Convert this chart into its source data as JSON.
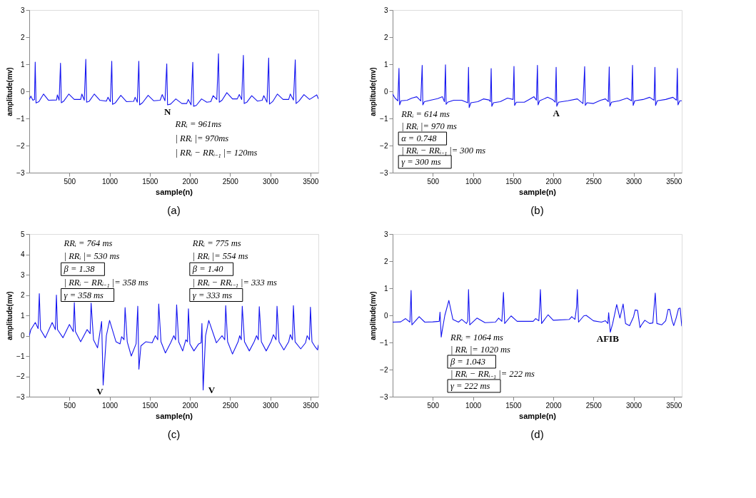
{
  "chart_data": [
    {
      "type": "line",
      "title": "(a)",
      "xlabel": "sample(n)",
      "ylabel": "amplitude(mv)",
      "xlim": [
        0,
        3600
      ],
      "xticks": [
        500,
        1000,
        1500,
        2000,
        2500,
        3000,
        3500
      ],
      "ylim": [
        -3,
        3
      ],
      "yticks": [
        -3,
        -2,
        -1,
        0,
        1,
        2,
        3
      ],
      "grid": false,
      "x": [
        0,
        20,
        45,
        65,
        74,
        84,
        120,
        178,
        240,
        340,
        350,
        372,
        389,
        399,
        430,
        493,
        560,
        640,
        655,
        685,
        704,
        714,
        745,
        810,
        880,
        960,
        980,
        1010,
        1027,
        1037,
        1070,
        1140,
        1210,
        1300,
        1318,
        1345,
        1364,
        1374,
        1410,
        1480,
        1550,
        1630,
        1655,
        1690,
        1712,
        1722,
        1760,
        1825,
        1900,
        1960,
        1980,
        2015,
        2036,
        2046,
        2080,
        2145,
        2210,
        2260,
        2290,
        2335,
        2356,
        2366,
        2400,
        2460,
        2530,
        2590,
        2615,
        2645,
        2666,
        2676,
        2710,
        2770,
        2840,
        2900,
        2920,
        2960,
        2981,
        2991,
        3030,
        3090,
        3160,
        3230,
        3250,
        3290,
        3312,
        3322,
        3360,
        3420,
        3490,
        3580,
        3600
      ],
      "series": [
        {
          "color": "#1414f0",
          "values": [
            -0.3,
            -0.18,
            -0.33,
            -0.3,
            1.08,
            -0.43,
            -0.38,
            -0.1,
            -0.33,
            -0.32,
            -0.13,
            -0.33,
            1.04,
            -0.42,
            -0.36,
            -0.1,
            -0.3,
            -0.3,
            -0.1,
            -0.33,
            1.18,
            -0.4,
            -0.37,
            -0.1,
            -0.33,
            -0.36,
            -0.22,
            -0.38,
            1.11,
            -0.48,
            -0.43,
            -0.15,
            -0.38,
            -0.37,
            -0.22,
            -0.4,
            1.11,
            -0.5,
            -0.42,
            -0.15,
            -0.35,
            -0.33,
            -0.12,
            -0.35,
            1.01,
            -0.5,
            -0.47,
            -0.28,
            -0.45,
            -0.45,
            -0.3,
            -0.5,
            1.07,
            -0.55,
            -0.52,
            -0.28,
            -0.4,
            -0.38,
            -0.16,
            -0.3,
            1.39,
            -0.4,
            -0.33,
            -0.05,
            -0.28,
            -0.28,
            -0.12,
            -0.3,
            1.33,
            -0.45,
            -0.4,
            -0.16,
            -0.36,
            -0.33,
            -0.16,
            -0.4,
            1.23,
            -0.47,
            -0.38,
            -0.1,
            -0.3,
            -0.3,
            -0.1,
            -0.32,
            1.16,
            -0.45,
            -0.35,
            -0.12,
            -0.3,
            -0.13,
            -0.28
          ]
        }
      ],
      "annotations": [
        "N",
        "RRᵢ = 961ms",
        "| RRᵢ |= 970ms",
        "| RRᵢ − RRᵢ₋₁ |= 120ms"
      ]
    },
    {
      "type": "line",
      "title": "(b)",
      "xlabel": "sample(n)",
      "ylabel": "amplitude(mv)",
      "xlim": [
        0,
        3600
      ],
      "xticks": [
        500,
        1000,
        1500,
        2000,
        2500,
        3000,
        3500
      ],
      "ylim": [
        -3,
        3
      ],
      "yticks": [
        -3,
        -2,
        -1,
        0,
        1,
        2,
        3
      ],
      "grid": false,
      "x": [
        0,
        30,
        65,
        79,
        87,
        105,
        180,
        240,
        300,
        350,
        368,
        376,
        395,
        470,
        560,
        620,
        645,
        658,
        666,
        685,
        760,
        860,
        935,
        945,
        953,
        975,
        1060,
        1130,
        1200,
        1217,
        1227,
        1235,
        1255,
        1340,
        1430,
        1500,
        1511,
        1519,
        1540,
        1640,
        1700,
        1760,
        1790,
        1803,
        1811,
        1830,
        1930,
        1990,
        2025,
        2036,
        2044,
        2065,
        2180,
        2300,
        2370,
        2391,
        2399,
        2420,
        2500,
        2590,
        2650,
        2685,
        2697,
        2705,
        2725,
        2820,
        2920,
        2975,
        2987,
        2995,
        3015,
        3120,
        3200,
        3255,
        3266,
        3274,
        3295,
        3400,
        3490,
        3535,
        3545,
        3553,
        3575,
        3600
      ],
      "series": [
        {
          "color": "#1414f0",
          "values": [
            -0.1,
            -0.25,
            -0.35,
            0.85,
            -0.5,
            -0.35,
            -0.33,
            -0.25,
            -0.2,
            -0.35,
            0.96,
            -0.5,
            -0.38,
            -0.33,
            -0.27,
            -0.2,
            -0.38,
            0.98,
            -0.48,
            -0.4,
            -0.33,
            -0.33,
            -0.42,
            0.89,
            -0.6,
            -0.42,
            -0.38,
            -0.28,
            -0.32,
            -0.38,
            0.84,
            -0.55,
            -0.42,
            -0.38,
            -0.25,
            -0.3,
            0.92,
            -0.52,
            -0.4,
            -0.4,
            -0.3,
            -0.2,
            -0.33,
            0.96,
            -0.5,
            -0.35,
            -0.22,
            -0.3,
            -0.4,
            0.89,
            -0.55,
            -0.4,
            -0.35,
            -0.28,
            -0.45,
            0.91,
            -0.52,
            -0.42,
            -0.45,
            -0.33,
            -0.28,
            -0.38,
            0.9,
            -0.55,
            -0.4,
            -0.35,
            -0.25,
            -0.35,
            0.96,
            -0.52,
            -0.35,
            -0.3,
            -0.22,
            -0.33,
            0.89,
            -0.52,
            -0.35,
            -0.3,
            -0.22,
            -0.33,
            0.85,
            -0.5,
            -0.35,
            -0.35
          ]
        }
      ],
      "annotations": [
        "A",
        "RRᵢ = 614 ms",
        "| RRᵢ |= 970 ms",
        "α = 0.748",
        "| RRᵢ − RRᵢ₋₁ |= 300 ms",
        "γ = 300 ms"
      ]
    },
    {
      "type": "line",
      "title": "(c)",
      "xlabel": "sample(n)",
      "ylabel": "amplitude(mv)",
      "xlim": [
        0,
        3600
      ],
      "xticks": [
        500,
        1000,
        1500,
        2000,
        2500,
        3000,
        3500
      ],
      "ylim": [
        -3,
        5
      ],
      "yticks": [
        -3,
        -2,
        -1,
        0,
        1,
        2,
        3,
        4,
        5
      ],
      "grid": false,
      "x": [
        0,
        20,
        75,
        110,
        125,
        140,
        200,
        285,
        325,
        338,
        352,
        420,
        500,
        548,
        561,
        575,
        640,
        720,
        758,
        770,
        800,
        850,
        901,
        920,
        960,
        1000,
        1080,
        1130,
        1150,
        1180,
        1193,
        1220,
        1270,
        1330,
        1351,
        1365,
        1390,
        1450,
        1530,
        1570,
        1600,
        1612,
        1640,
        1695,
        1760,
        1800,
        1822,
        1835,
        1860,
        1910,
        1950,
        1970,
        1982,
        2000,
        2050,
        2110,
        2140,
        2150,
        2165,
        2195,
        2235,
        2330,
        2400,
        2434,
        2446,
        2470,
        2530,
        2600,
        2620,
        2640,
        2652,
        2680,
        2740,
        2800,
        2830,
        2852,
        2864,
        2890,
        2950,
        3010,
        3040,
        3073,
        3085,
        3110,
        3170,
        3230,
        3250,
        3277,
        3289,
        3310,
        3380,
        3440,
        3460,
        3489,
        3501,
        3520,
        3560,
        3590,
        3600
      ],
      "series": [
        {
          "color": "#1414f0",
          "values": [
            0.0,
            0.3,
            0.65,
            0.35,
            2.07,
            0.3,
            -0.1,
            0.65,
            0.3,
            2.0,
            0.3,
            -0.1,
            0.55,
            0.2,
            1.63,
            0.2,
            -0.3,
            0.3,
            0.1,
            1.6,
            -0.2,
            -0.6,
            0.7,
            -2.43,
            0.0,
            0.75,
            -0.3,
            -0.4,
            -0.05,
            -0.2,
            1.38,
            -0.3,
            -1.0,
            -0.4,
            1.45,
            -1.65,
            -0.5,
            -0.3,
            -0.35,
            0.0,
            -0.2,
            1.56,
            -0.3,
            -0.85,
            -0.35,
            0.0,
            -0.2,
            1.52,
            -0.3,
            -0.75,
            -0.2,
            -0.3,
            1.32,
            -0.4,
            -0.75,
            -0.4,
            -0.35,
            0.6,
            -2.67,
            0.0,
            0.75,
            -0.35,
            0.0,
            -0.2,
            1.48,
            -0.3,
            -0.9,
            -0.3,
            0.0,
            -0.2,
            1.45,
            -0.3,
            -0.75,
            -0.3,
            0.0,
            -0.2,
            1.43,
            -0.3,
            -0.75,
            -0.3,
            0.05,
            -0.2,
            1.45,
            -0.3,
            -0.7,
            -0.3,
            0.05,
            -0.2,
            1.48,
            -0.3,
            -0.65,
            -0.35,
            0.0,
            -0.2,
            1.4,
            -0.3,
            -0.55,
            -0.7,
            -0.45
          ]
        }
      ],
      "annotations": [
        "V",
        "V",
        "RRᵢ = 764 ms",
        "| RRᵢ |= 530 ms",
        "β = 1.38",
        "| RRᵢ − RRᵢ₋₁ |= 358 ms",
        "γ = 358 ms",
        "RRᵢ = 775 ms",
        "| RRᵢ |= 554 ms",
        "β = 1.40",
        "| RRᵢ − RRᵢ₋₁ |= 333 ms",
        "γ = 333 ms"
      ]
    },
    {
      "type": "line",
      "title": "(d)",
      "xlabel": "sample(n)",
      "ylabel": "amplitude(mv)",
      "xlim": [
        0,
        3600
      ],
      "xticks": [
        500,
        1000,
        1500,
        2000,
        2500,
        3000,
        3500
      ],
      "ylim": [
        -3,
        3
      ],
      "yticks": [
        -3,
        -2,
        -1,
        0,
        1,
        2,
        3
      ],
      "grid": false,
      "x": [
        0,
        100,
        161,
        215,
        230,
        240,
        330,
        400,
        500,
        580,
        590,
        605,
        615,
        650,
        700,
        750,
        820,
        860,
        920,
        935,
        945,
        960,
        1050,
        1150,
        1280,
        1320,
        1360,
        1370,
        1380,
        1395,
        1475,
        1550,
        1750,
        1780,
        1820,
        1830,
        1840,
        1855,
        1935,
        2000,
        2200,
        2230,
        2270,
        2290,
        2300,
        2315,
        2380,
        2410,
        2500,
        2600,
        2650,
        2680,
        2690,
        2710,
        2740,
        2790,
        2830,
        2870,
        2900,
        2950,
        3000,
        3020,
        3050,
        3080,
        3100,
        3140,
        3200,
        3240,
        3270,
        3290,
        3350,
        3400,
        3430,
        3450,
        3480,
        3500,
        3530,
        3560,
        3580,
        3600
      ],
      "series": [
        {
          "color": "#1414f0",
          "values": [
            -0.25,
            -0.24,
            -0.12,
            -0.25,
            0.92,
            -0.35,
            -0.05,
            -0.25,
            -0.24,
            -0.22,
            0.12,
            -0.8,
            -0.6,
            0.0,
            0.55,
            -0.15,
            -0.25,
            -0.15,
            -0.3,
            -0.2,
            0.95,
            -0.35,
            -0.1,
            -0.27,
            -0.25,
            -0.1,
            -0.22,
            0.3,
            0.85,
            -0.3,
            -0.02,
            -0.22,
            -0.22,
            -0.12,
            -0.2,
            0.3,
            0.95,
            -0.3,
            0.02,
            -0.18,
            -0.15,
            -0.05,
            -0.15,
            0.3,
            0.95,
            -0.25,
            -0.02,
            0.0,
            -0.2,
            -0.25,
            -0.2,
            -0.3,
            0.1,
            -0.62,
            -0.3,
            0.4,
            -0.1,
            0.42,
            -0.3,
            -0.38,
            -0.05,
            0.2,
            0.18,
            -0.45,
            -0.35,
            -0.18,
            -0.3,
            -0.28,
            0.82,
            -0.3,
            -0.35,
            -0.2,
            0.22,
            0.22,
            -0.2,
            -0.38,
            -0.1,
            0.25,
            0.27,
            -0.4
          ]
        }
      ],
      "annotations": [
        "AFIB",
        "RRᵢ = 1064 ms",
        "| RRᵢ |= 1020 ms",
        "β = 1.043",
        "| RRᵢ − RRᵢ₋₁ |= 222 ms",
        "γ = 222 ms"
      ]
    }
  ]
}
